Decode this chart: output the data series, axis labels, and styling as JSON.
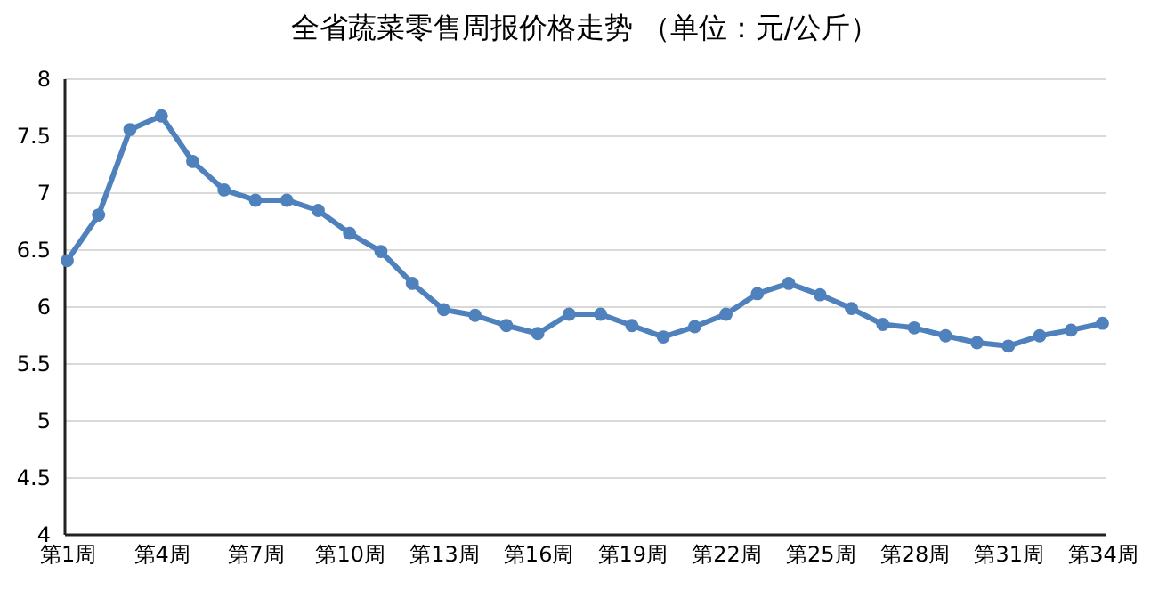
{
  "chart_data": {
    "type": "line",
    "title": "全省蔬菜零售周报价格走势    （单位：元/公斤）",
    "categories": [
      "第1周",
      null,
      null,
      "第4周",
      null,
      null,
      "第7周",
      null,
      null,
      "第10周",
      null,
      null,
      "第13周",
      null,
      null,
      "第16周",
      null,
      null,
      "第19周",
      null,
      null,
      "第22周",
      null,
      null,
      "第25周",
      null,
      null,
      "第28周",
      null,
      null,
      "第31周",
      null,
      null,
      "第34周"
    ],
    "series": [
      {
        "color": "#4f81bd",
        "values": [
          6.4,
          6.8,
          7.55,
          7.67,
          7.27,
          7.02,
          6.93,
          6.93,
          6.84,
          6.64,
          6.48,
          6.2,
          5.97,
          5.92,
          5.83,
          5.76,
          5.93,
          5.93,
          5.83,
          5.73,
          5.82,
          5.93,
          6.11,
          6.2,
          6.1,
          5.98,
          5.84,
          5.81,
          5.74,
          5.68,
          5.65,
          5.74,
          5.79,
          5.85
        ]
      }
    ],
    "ylim": [
      4,
      8
    ],
    "yticks": [
      4,
      4.5,
      5,
      5.5,
      6,
      6.5,
      7,
      7.5,
      8
    ],
    "grid": "y",
    "marker": "circle",
    "legend": false
  }
}
